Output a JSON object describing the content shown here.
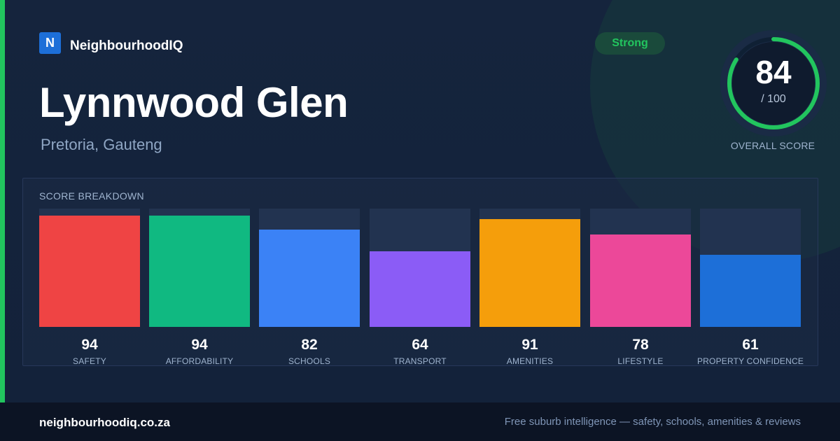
{
  "brand": {
    "logo_letter": "N",
    "name": "NeighbourhoodIQ"
  },
  "suburb": {
    "name": "Lynnwood Glen",
    "location": "Pretoria, Gauteng"
  },
  "rating_badge": "Strong",
  "overall": {
    "score": "84",
    "max": "/ 100",
    "label": "OVERALL SCORE",
    "fraction": 0.84
  },
  "breakdown": {
    "title": "SCORE BREAKDOWN",
    "items": [
      {
        "label": "SAFETY",
        "value": 94,
        "color": "#ef4444"
      },
      {
        "label": "AFFORDABILITY",
        "value": 94,
        "color": "#10b981"
      },
      {
        "label": "SCHOOLS",
        "value": 82,
        "color": "#3b82f6"
      },
      {
        "label": "TRANSPORT",
        "value": 64,
        "color": "#8b5cf6"
      },
      {
        "label": "AMENITIES",
        "value": 91,
        "color": "#f59e0b"
      },
      {
        "label": "LIFESTYLE",
        "value": 78,
        "color": "#ec4899"
      },
      {
        "label": "PROPERTY CONFIDENCE",
        "value": 61,
        "color": "#1d6fd8"
      }
    ]
  },
  "footer": {
    "domain": "neighbourhoodiq.co.za",
    "tagline": "Free suburb intelligence — safety, schools, amenities & reviews"
  },
  "colors": {
    "accent": "#22c55e",
    "brand_blue": "#1d6fd8",
    "badge_text": "#22c55e"
  }
}
